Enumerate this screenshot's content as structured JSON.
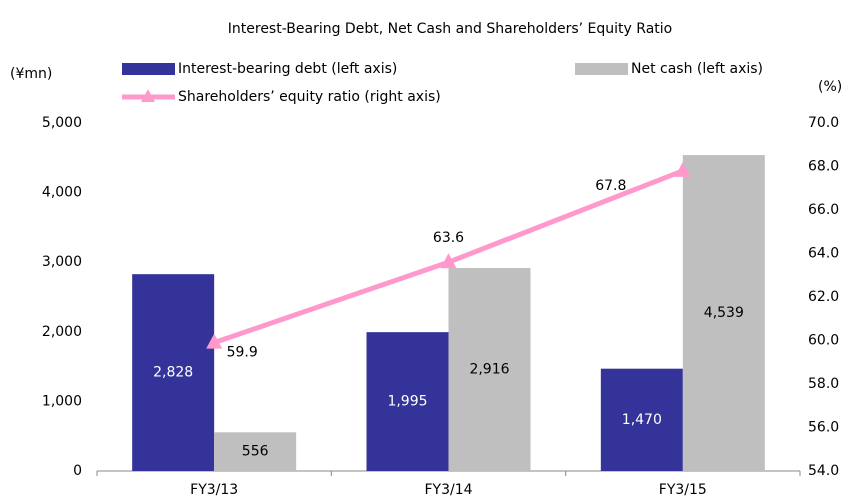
{
  "chart_data": {
    "type": "bar_line",
    "title": "Interest-Bearing Debt, Net Cash and Shareholders’ Equity Ratio",
    "y_label": "(¥mn)",
    "y2_label": "(%)",
    "categories": [
      "FY3/13",
      "FY3/14",
      "FY3/15"
    ],
    "series": [
      {
        "name": "Interest-bearing debt (left axis)",
        "type": "bar",
        "color": "#333399",
        "values": [
          2828,
          1995,
          1470
        ],
        "value_labels": [
          "2,828",
          "1,995",
          "1,470"
        ]
      },
      {
        "name": "Net cash (left axis)",
        "type": "bar",
        "color": "#bfbfbf",
        "values": [
          556,
          2916,
          4539
        ],
        "value_labels": [
          "556",
          "2,916",
          "4,539"
        ]
      },
      {
        "name": "Shareholders’ equity ratio (right axis)",
        "type": "line",
        "axis": "y2",
        "color": "#ff99cc",
        "values": [
          59.9,
          63.6,
          67.8
        ]
      }
    ],
    "ylim": [
      0,
      5000
    ],
    "yticks": [
      0,
      {
        "value": 1000,
        "label": "1,000"
      },
      {
        "value": 2000,
        "label": "2,000"
      },
      {
        "value": 3000,
        "label": "3,000"
      },
      {
        "value": 4000,
        "label": "4,000"
      },
      {
        "value": 5000,
        "label": "5,000"
      }
    ],
    "y2lim": [
      54,
      70
    ],
    "y2ticks": [
      {
        "value": 54,
        "label": "54.0"
      },
      {
        "value": 56,
        "label": "56.0"
      },
      {
        "value": 58,
        "label": "58.0"
      },
      {
        "value": 60,
        "label": "60.0"
      },
      {
        "value": 62,
        "label": "62.0"
      },
      {
        "value": 64,
        "label": "64.0"
      },
      {
        "value": 66,
        "label": "66.0"
      },
      {
        "value": 68,
        "label": "68.0"
      },
      {
        "value": 70,
        "label": "70.0"
      }
    ],
    "grid": false
  }
}
